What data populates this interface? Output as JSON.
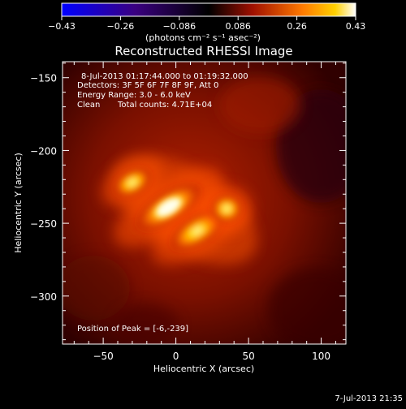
{
  "chart_data": {
    "type": "heatmap",
    "title": "Reconstructed RHESSI Image",
    "xlabel": "Heliocentric X (arcsec)",
    "ylabel": "Heliocentric Y (arcsec)",
    "xlim": [
      -78,
      117
    ],
    "ylim": [
      -333,
      -139
    ],
    "x_ticks": [
      -50,
      0,
      50,
      100
    ],
    "y_ticks": [
      -150,
      -200,
      -250,
      -300
    ],
    "colorbar": {
      "min": -0.43,
      "max": 0.43,
      "ticks": [
        "-0.43",
        "-0.26",
        "-0.086",
        "0.086",
        "0.26",
        "0.43"
      ],
      "unit_label": "(photons cm⁻² s⁻¹ asec⁻²)"
    },
    "sources": [
      {
        "x": -5,
        "y": -239,
        "peak": 0.43
      },
      {
        "x": 15,
        "y": -255,
        "peak": 0.36
      },
      {
        "x": -30,
        "y": -222,
        "peak": 0.3
      },
      {
        "x": 35,
        "y": -240,
        "peak": 0.32
      }
    ],
    "annotations": {
      "time_range": "8-Jul-2013 01:17:44.000 to 01:19:32.000",
      "detectors": "Detectors: 3F 5F 6F 7F 8F 9F, Att 0",
      "energy": "Energy Range: 3.0 - 6.0 keV",
      "algorithm": "Clean",
      "counts": "Total counts: 4.71E+04",
      "peak": "Position of Peak = [-6,-239]"
    },
    "timestamp": "7-Jul-2013 21:35"
  }
}
